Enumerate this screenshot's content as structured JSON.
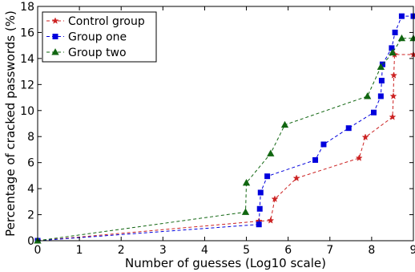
{
  "chart_data": {
    "type": "line",
    "title": "",
    "xlabel": "Number of guesses (Log10 scale)",
    "ylabel": "Percentage of cracked passwords (%)",
    "xlim": [
      0,
      9
    ],
    "ylim": [
      0,
      18
    ],
    "xticks": [
      0,
      1,
      2,
      3,
      4,
      5,
      6,
      7,
      8,
      9
    ],
    "yticks": [
      0,
      2,
      4,
      6,
      8,
      10,
      12,
      14,
      16,
      18
    ],
    "grid": false,
    "legend_position": "top-left",
    "series": [
      {
        "name": "Control group",
        "color": "#cc2222",
        "marker": "star",
        "points": [
          [
            0,
            0
          ],
          [
            5.3,
            1.5
          ],
          [
            5.58,
            1.55
          ],
          [
            5.68,
            3.2
          ],
          [
            6.2,
            4.8
          ],
          [
            7.7,
            6.35
          ],
          [
            7.85,
            7.95
          ],
          [
            8.5,
            9.5
          ],
          [
            8.52,
            11.1
          ],
          [
            8.53,
            12.7
          ],
          [
            8.55,
            14.3
          ],
          [
            9,
            14.3
          ]
        ]
      },
      {
        "name": "Group one",
        "color": "#0000dd",
        "marker": "square",
        "points": [
          [
            0,
            0
          ],
          [
            5.3,
            1.25
          ],
          [
            5.32,
            2.45
          ],
          [
            5.34,
            3.7
          ],
          [
            5.5,
            4.95
          ],
          [
            6.65,
            6.2
          ],
          [
            6.85,
            7.4
          ],
          [
            7.45,
            8.65
          ],
          [
            8.05,
            9.85
          ],
          [
            8.22,
            11.1
          ],
          [
            8.24,
            12.3
          ],
          [
            8.26,
            13.55
          ],
          [
            8.48,
            14.8
          ],
          [
            8.56,
            16.0
          ],
          [
            8.72,
            17.25
          ],
          [
            9,
            17.25
          ]
        ]
      },
      {
        "name": "Group two",
        "color": "#116611",
        "marker": "triangle",
        "points": [
          [
            0,
            0
          ],
          [
            4.98,
            2.2
          ],
          [
            5.0,
            4.45
          ],
          [
            5.58,
            6.7
          ],
          [
            5.92,
            8.9
          ],
          [
            7.9,
            11.1
          ],
          [
            8.22,
            13.35
          ],
          [
            8.5,
            14.45
          ],
          [
            8.72,
            15.55
          ],
          [
            9,
            15.55
          ]
        ]
      }
    ]
  }
}
